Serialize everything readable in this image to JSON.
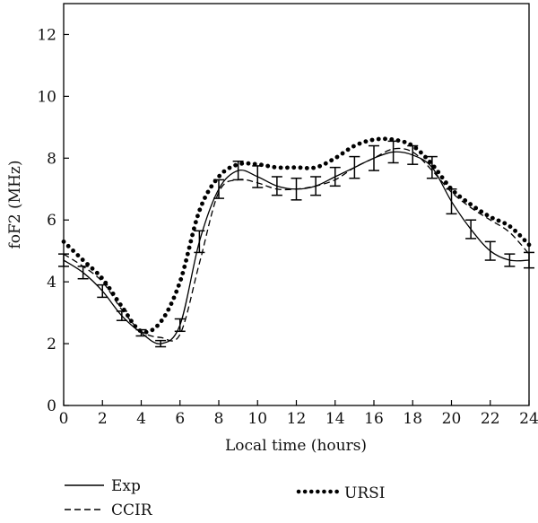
{
  "chart_data": {
    "type": "line",
    "xlabel": "Local time (hours)",
    "ylabel": "foF2 (MHz)",
    "xlim": [
      0,
      24
    ],
    "ylim": [
      0,
      13
    ],
    "x_ticks": [
      0,
      2,
      4,
      6,
      8,
      10,
      12,
      14,
      16,
      18,
      20,
      22,
      24
    ],
    "y_ticks": [
      0,
      2,
      4,
      6,
      8,
      10,
      12
    ],
    "grid": false,
    "legend_position": "bottom",
    "x": [
      0,
      1,
      2,
      3,
      4,
      5,
      6,
      7,
      8,
      9,
      10,
      11,
      12,
      13,
      14,
      15,
      16,
      17,
      18,
      19,
      20,
      21,
      22,
      23,
      24
    ],
    "series": [
      {
        "name": "Exp",
        "style": "solid",
        "color": "#000000",
        "values": [
          4.7,
          4.3,
          3.7,
          2.9,
          2.35,
          2.0,
          2.6,
          5.3,
          7.0,
          7.6,
          7.4,
          7.1,
          7.0,
          7.1,
          7.4,
          7.7,
          8.0,
          8.2,
          8.1,
          7.7,
          6.6,
          5.7,
          5.0,
          4.7,
          4.7
        ],
        "error": [
          0.2,
          0.2,
          0.2,
          0.15,
          0.1,
          0.1,
          0.2,
          0.35,
          0.3,
          0.3,
          0.35,
          0.3,
          0.35,
          0.3,
          0.3,
          0.35,
          0.4,
          0.35,
          0.3,
          0.35,
          0.4,
          0.3,
          0.3,
          0.2,
          0.25
        ]
      },
      {
        "name": "CCIR",
        "style": "dashed",
        "color": "#000000",
        "values": [
          4.9,
          4.5,
          4.0,
          3.1,
          2.4,
          2.2,
          2.3,
          4.6,
          6.9,
          7.3,
          7.2,
          7.0,
          7.0,
          7.1,
          7.3,
          7.7,
          8.0,
          8.3,
          8.2,
          7.6,
          6.9,
          6.4,
          6.0,
          5.6,
          4.9
        ]
      },
      {
        "name": "URSI",
        "style": "dotted",
        "color": "#000000",
        "values": [
          5.3,
          4.7,
          4.1,
          3.2,
          2.4,
          2.7,
          4.0,
          6.3,
          7.4,
          7.8,
          7.8,
          7.7,
          7.7,
          7.7,
          8.0,
          8.4,
          8.6,
          8.6,
          8.4,
          7.8,
          7.0,
          6.5,
          6.1,
          5.8,
          5.2
        ]
      }
    ]
  },
  "legend": {
    "exp_label": "Exp",
    "ccir_label": "CCIR",
    "ursi_label": "URSI"
  }
}
